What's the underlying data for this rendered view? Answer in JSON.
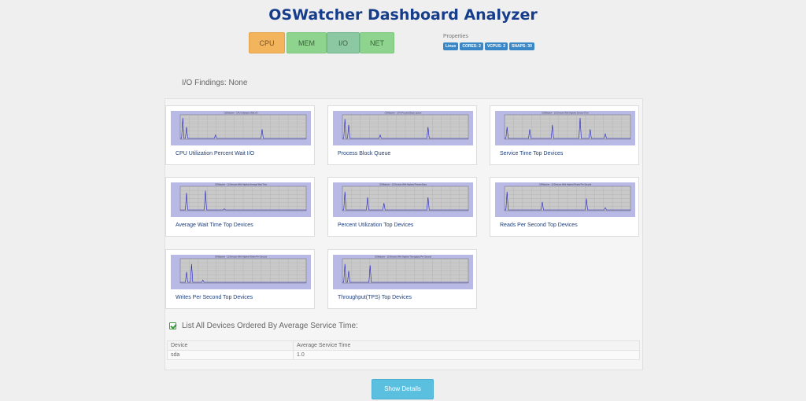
{
  "header": {
    "title": "OSWatcher Dashboard Analyzer"
  },
  "tabs": [
    {
      "id": "cpu",
      "label": "CPU"
    },
    {
      "id": "mem",
      "label": "MEM"
    },
    {
      "id": "io",
      "label": "I/O"
    },
    {
      "id": "net",
      "label": "NET"
    }
  ],
  "properties": {
    "label": "Properties",
    "badges": [
      "Linux",
      "CORES: 2",
      "VCPUS: 2",
      "SNAPS: 30"
    ]
  },
  "findings": {
    "text": "I/O Findings: None",
    "icon": "database-icon"
  },
  "charts": [
    {
      "caption": "CPU Utilization Percent Wait I/O",
      "chart_title": "OSWatcher - CPU Utilization Wait I/O"
    },
    {
      "caption": "Process Block Queue",
      "chart_title": "OSWatcher - CPU Process Block Queue"
    },
    {
      "caption": "Service Time Top Devices",
      "chart_title": "OSWatcher - 10 Devices With Highest Service Time"
    },
    {
      "caption": "Average Wait Time Top Devices",
      "chart_title": "OSWatcher - 10 Devices With Highest Average Wait Time"
    },
    {
      "caption": "Percent Utilization Top Devices",
      "chart_title": "OSWatcher - 10 Devices With Highest Percent Busy"
    },
    {
      "caption": "Reads Per Second Top Devices",
      "chart_title": "OSWatcher - 10 Devices With Highest Reads Per Second"
    },
    {
      "caption": "Writes Per Second Top Devices",
      "chart_title": "OSWatcher - 10 Devices With Highest Writes Per Second"
    },
    {
      "caption": "Throughput(TPS) Top Devices",
      "chart_title": "OSWatcher - 10 Devices With Highest Throughput Per Second"
    }
  ],
  "devices_section": {
    "title": "List All Devices Ordered By Average Service Time:",
    "icon": "checkbox-icon",
    "columns": [
      "Device",
      "Average Service Time"
    ],
    "rows": [
      [
        "sda",
        "1.0"
      ]
    ]
  },
  "show_details_label": "Show Details",
  "colors": {
    "title": "#163c8c",
    "cpu_tab": "#f2b55e",
    "green_tab": "#8ed48e",
    "badge": "#3a87c8",
    "button": "#5bbfe0",
    "chart_bg": "#b9b9e6",
    "chart_line": "#2020cc"
  }
}
